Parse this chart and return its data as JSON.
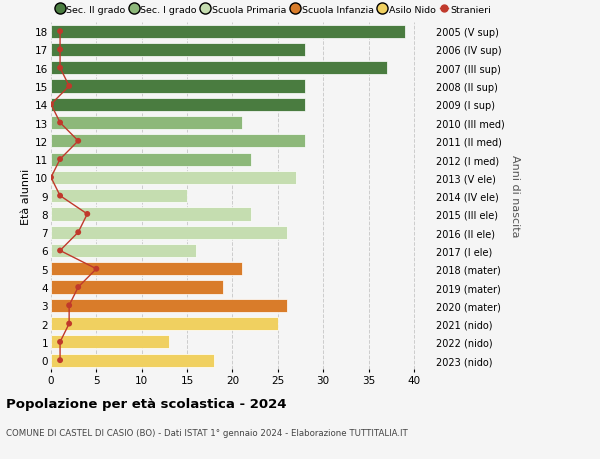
{
  "ages": [
    18,
    17,
    16,
    15,
    14,
    13,
    12,
    11,
    10,
    9,
    8,
    7,
    6,
    5,
    4,
    3,
    2,
    1,
    0
  ],
  "years": [
    "2005 (V sup)",
    "2006 (IV sup)",
    "2007 (III sup)",
    "2008 (II sup)",
    "2009 (I sup)",
    "2010 (III med)",
    "2011 (II med)",
    "2012 (I med)",
    "2013 (V ele)",
    "2014 (IV ele)",
    "2015 (III ele)",
    "2016 (II ele)",
    "2017 (I ele)",
    "2018 (mater)",
    "2019 (mater)",
    "2020 (mater)",
    "2021 (nido)",
    "2022 (nido)",
    "2023 (nido)"
  ],
  "bar_values": [
    39,
    28,
    37,
    28,
    28,
    21,
    28,
    22,
    27,
    15,
    22,
    26,
    16,
    21,
    19,
    26,
    25,
    13,
    18
  ],
  "bar_colors": [
    "#4a7c40",
    "#4a7c40",
    "#4a7c40",
    "#4a7c40",
    "#4a7c40",
    "#8db87a",
    "#8db87a",
    "#8db87a",
    "#c5ddb0",
    "#c5ddb0",
    "#c5ddb0",
    "#c5ddb0",
    "#c5ddb0",
    "#d97c2a",
    "#d97c2a",
    "#d97c2a",
    "#f0d060",
    "#f0d060",
    "#f0d060"
  ],
  "stranieri": [
    1,
    1,
    1,
    2,
    0,
    1,
    3,
    1,
    0,
    1,
    4,
    3,
    1,
    5,
    3,
    2,
    2,
    1,
    1
  ],
  "title": "Popolazione per età scolastica - 2024",
  "subtitle": "COMUNE DI CASTEL DI CASIO (BO) - Dati ISTAT 1° gennaio 2024 - Elaborazione TUTTITALIA.IT",
  "ylabel_left": "Età alunni",
  "ylabel_right": "Anni di nascita",
  "xlim": [
    0,
    42
  ],
  "xticks": [
    0,
    5,
    10,
    15,
    20,
    25,
    30,
    35,
    40
  ],
  "legend_labels": [
    "Sec. II grado",
    "Sec. I grado",
    "Scuola Primaria",
    "Scuola Infanzia",
    "Asilo Nido",
    "Stranieri"
  ],
  "legend_colors": [
    "#4a7c40",
    "#8db87a",
    "#c5ddb0",
    "#d97c2a",
    "#f0d060",
    "#c0392b"
  ],
  "stranieri_color": "#c0392b",
  "grid_color": "#cccccc",
  "bg_color": "#f5f5f5",
  "bar_height": 0.72
}
